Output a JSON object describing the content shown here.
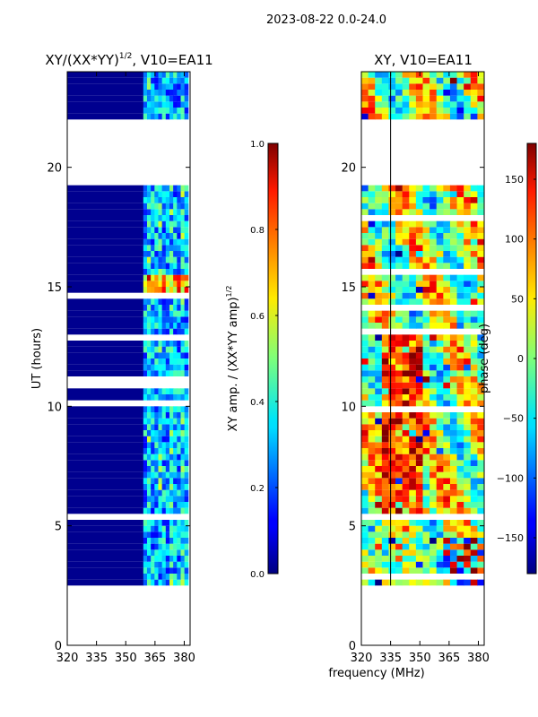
{
  "figure": {
    "suptitle": "2023-08-22 0.0-24.0",
    "shared_xlabel": "frequency (MHz)"
  },
  "chart_data": [
    {
      "type": "heatmap",
      "title_main": "XY/(XX*YY)",
      "title_sup": "1/2",
      "title_rest": ", V10=EA11",
      "xlabel": "",
      "ylabel": "UT (hours)",
      "xlim": [
        320,
        383
      ],
      "ylim": [
        0,
        24
      ],
      "xticks": [
        320,
        335,
        350,
        365,
        380
      ],
      "xtick_labels": [
        "320",
        "335",
        "350",
        "365",
        "380"
      ],
      "yticks": [
        0,
        5,
        10,
        15,
        20
      ],
      "ytick_labels": [
        "0",
        "5",
        "10",
        "15",
        "20"
      ],
      "data_start_hour": 2.5,
      "data_gap_hours": [
        19.2,
        22.0
      ],
      "hot_band_mhz": [
        359,
        382
      ],
      "colorbar": {
        "label_main": "XY amp. / (XX*YY amp)",
        "label_sup": "1/2",
        "range": [
          0.0,
          1.0
        ],
        "ticks": [
          0.0,
          0.2,
          0.4,
          0.6,
          0.8,
          1.0
        ],
        "tick_labels": [
          "0.0",
          "0.2",
          "0.4",
          "0.6",
          "0.8",
          "1.0"
        ],
        "colormap": "jet"
      }
    },
    {
      "type": "heatmap",
      "title": "XY, V10=EA11",
      "xlabel": "frequency (MHz)",
      "ylabel": "",
      "xlim": [
        320,
        383
      ],
      "ylim": [
        0,
        24
      ],
      "xticks": [
        320,
        335,
        350,
        365,
        380
      ],
      "xtick_labels": [
        "320",
        "335",
        "350",
        "365",
        "380"
      ],
      "yticks": [
        0,
        5,
        10,
        15,
        20
      ],
      "ytick_labels": [
        "0",
        "5",
        "10",
        "15",
        "20"
      ],
      "data_start_hour": 2.5,
      "data_gap_hours": [
        19.2,
        22.0
      ],
      "vertical_line_mhz": 335,
      "colorbar": {
        "label": "phase (deg)",
        "range": [
          -180,
          180
        ],
        "ticks": [
          -150,
          -100,
          -50,
          0,
          50,
          100,
          150
        ],
        "tick_labels": [
          "−150",
          "−100",
          "−50",
          "0",
          "50",
          "100",
          "150"
        ],
        "colormap": "jet"
      }
    }
  ]
}
